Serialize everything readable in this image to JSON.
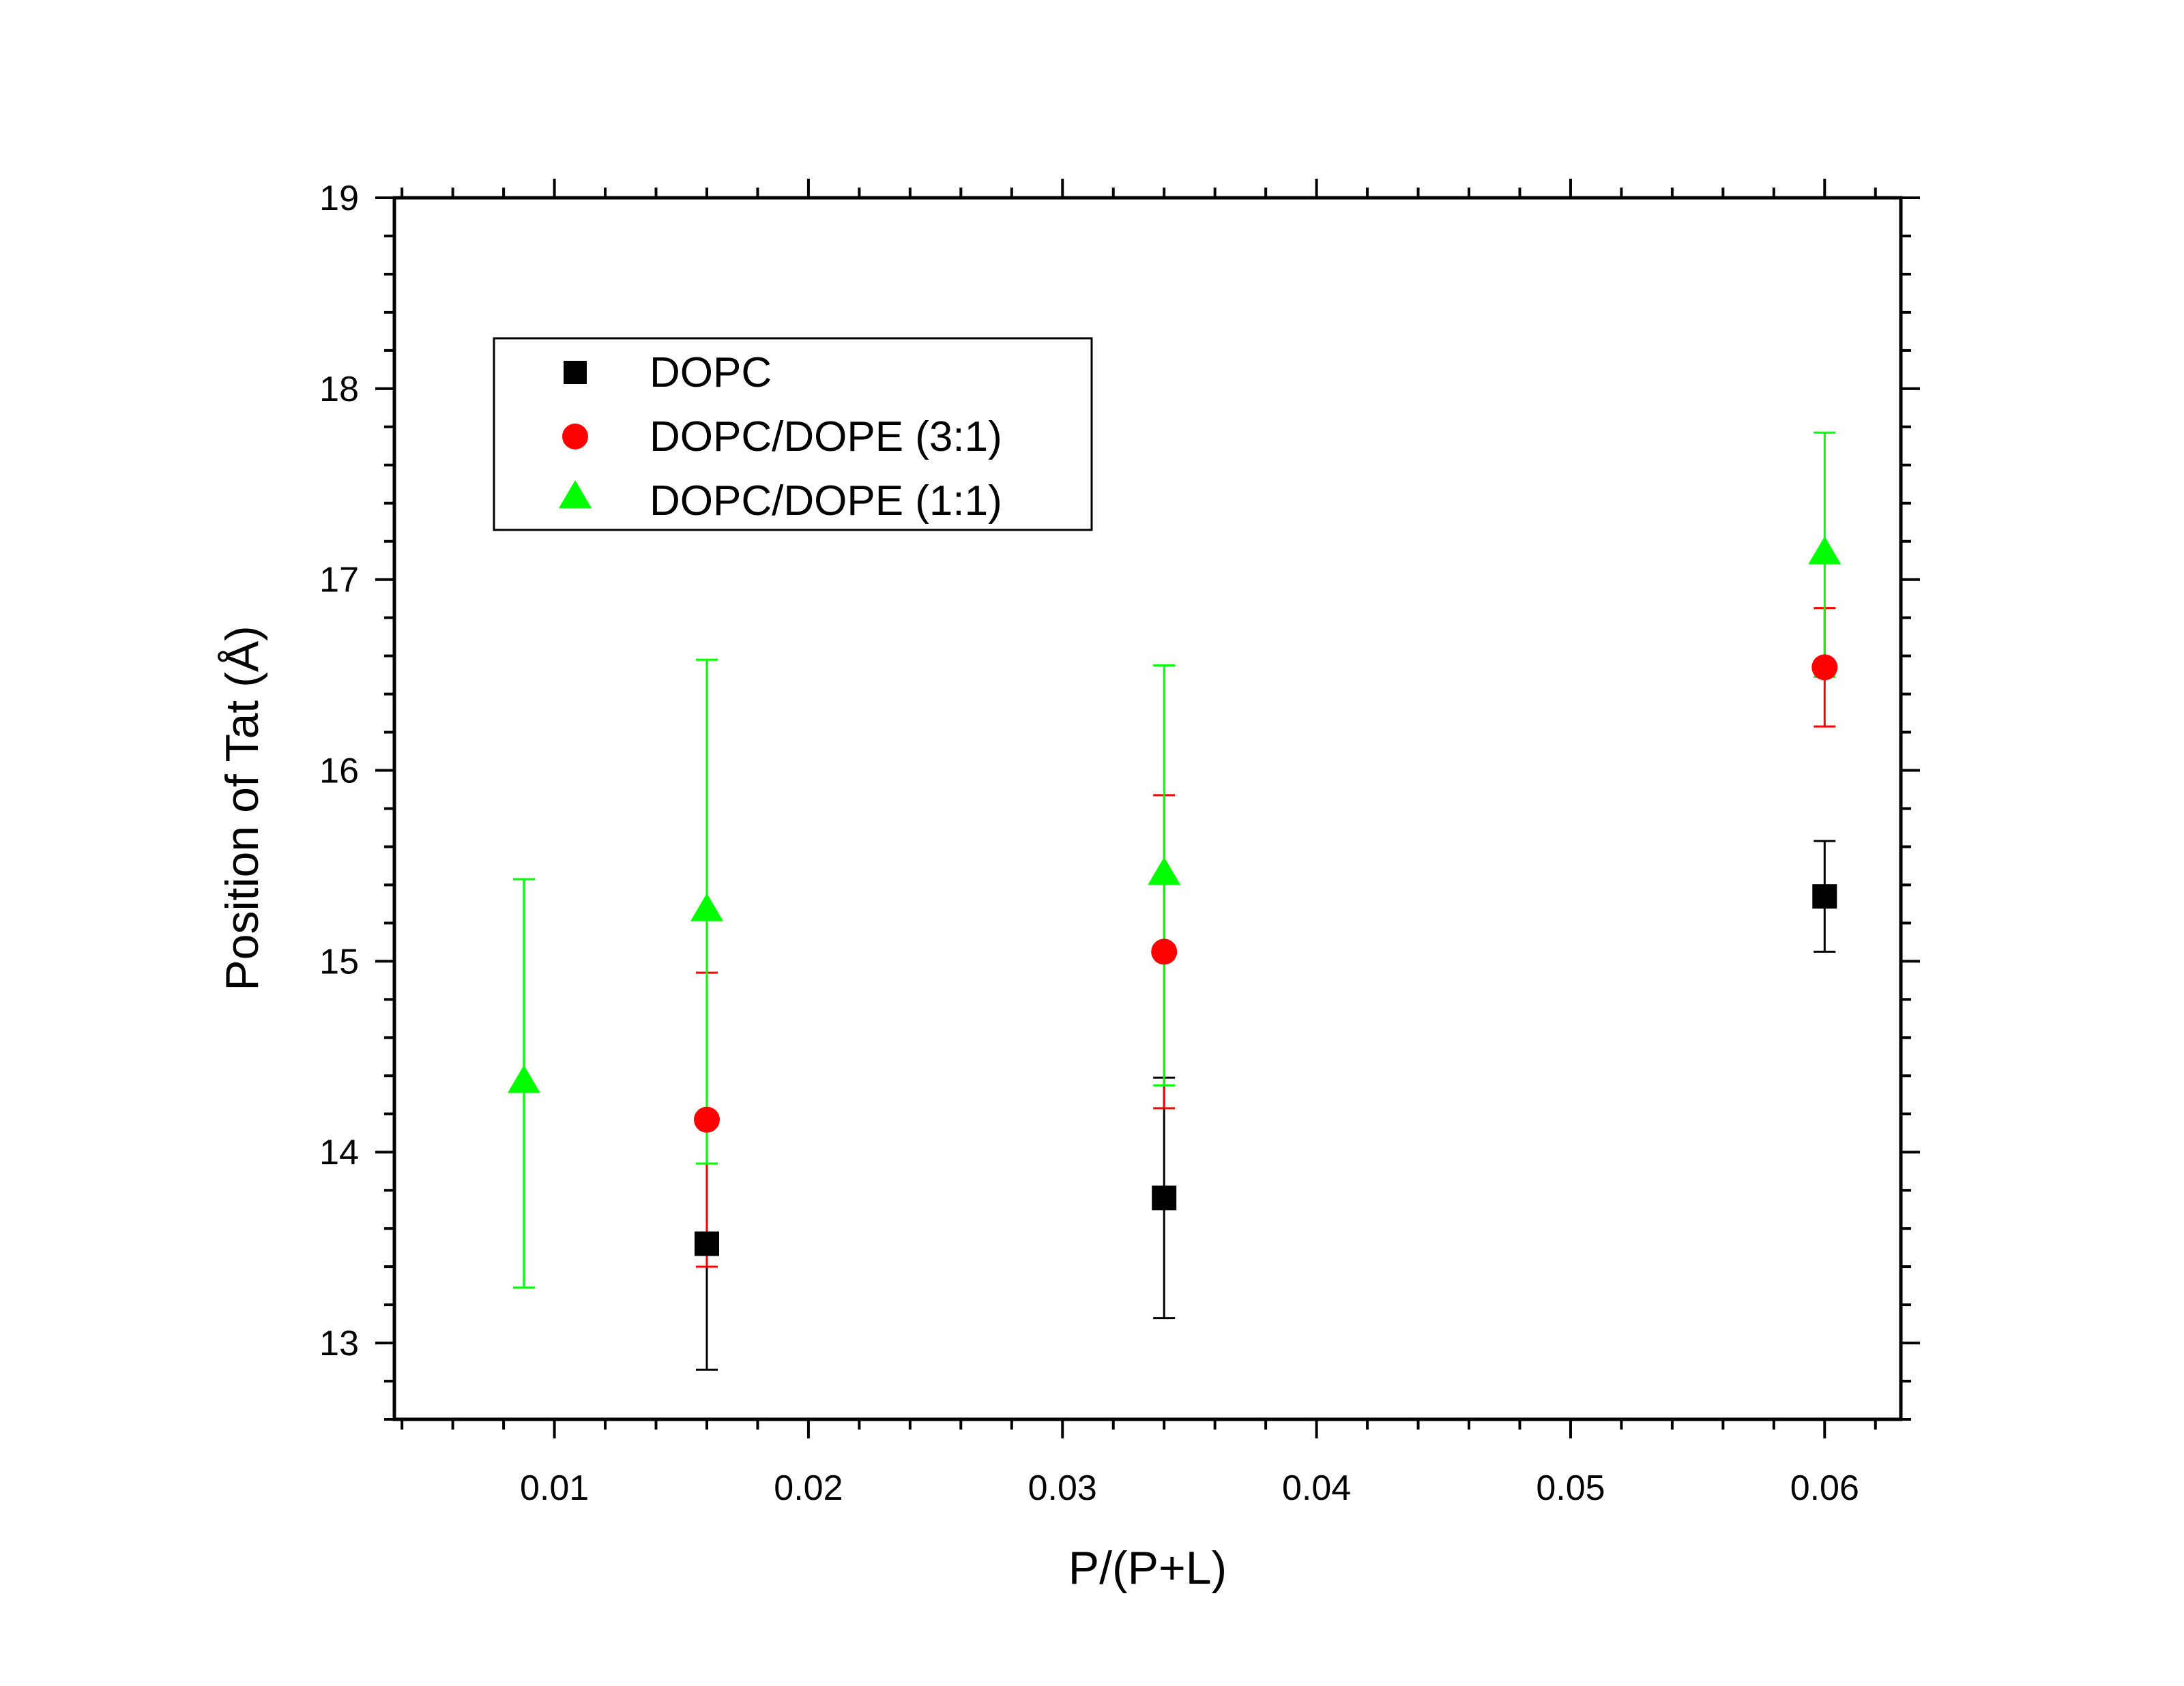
{
  "chart_data": {
    "type": "scatter",
    "xlabel": "P/(P+L)",
    "ylabel": "Position of Tat (Å)",
    "xlim": [
      0.0037,
      0.063
    ],
    "ylim": [
      12.6,
      19
    ],
    "xticks": [
      0.01,
      0.02,
      0.03,
      0.04,
      0.05,
      0.06
    ],
    "xtick_labels": [
      "0.01",
      "0.02",
      "0.03",
      "0.04",
      "0.05",
      "0.06"
    ],
    "yticks": [
      13,
      14,
      15,
      16,
      17,
      18,
      19
    ],
    "ytick_labels": [
      "13",
      "14",
      "15",
      "16",
      "17",
      "18",
      "19"
    ],
    "grid": false,
    "legend_position": "top-left",
    "series": [
      {
        "name": "DOPC",
        "marker": "square",
        "color": "#000000",
        "x": [
          0.016,
          0.034,
          0.06
        ],
        "y": [
          13.52,
          13.76,
          15.34
        ],
        "yerr": [
          0.66,
          0.63,
          0.29
        ]
      },
      {
        "name": "DOPC/DOPE (3:1)",
        "marker": "circle",
        "color": "#ff0000",
        "x": [
          0.016,
          0.034,
          0.06
        ],
        "y": [
          14.17,
          15.05,
          16.54
        ],
        "yerr": [
          0.77,
          0.82,
          0.31
        ]
      },
      {
        "name": "DOPC/DOPE (1:1)",
        "marker": "triangle",
        "color": "#00ff00",
        "x": [
          0.0088,
          0.016,
          0.034,
          0.06
        ],
        "y": [
          14.36,
          15.26,
          15.45,
          17.13
        ],
        "yerr": [
          1.07,
          1.32,
          1.1,
          0.64
        ]
      }
    ]
  }
}
